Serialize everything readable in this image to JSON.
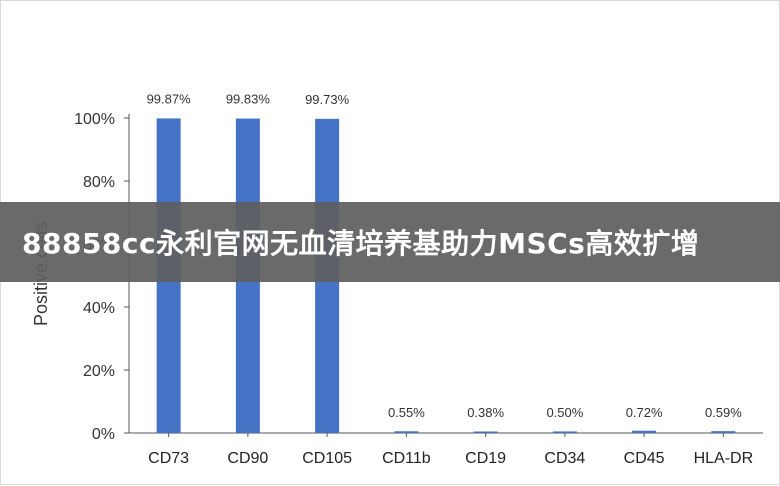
{
  "banner": {
    "text": "88858cc永利官网无血清培养基助力MSCs高效扩增"
  },
  "chart_data": {
    "type": "bar",
    "categories": [
      "CD73",
      "CD90",
      "CD105",
      "CD11b",
      "CD19",
      "CD34",
      "CD45",
      "HLA-DR"
    ],
    "values": [
      99.87,
      99.83,
      99.73,
      0.55,
      0.38,
      0.5,
      0.72,
      0.59
    ],
    "data_labels": [
      "99.87%",
      "99.83%",
      "99.73%",
      "0.55%",
      "0.38%",
      "0.50%",
      "0.72%",
      "0.59%"
    ],
    "ylabel": "Positive cells",
    "ylim": [
      0,
      100
    ],
    "yticks": [
      0,
      20,
      40,
      60,
      80,
      100
    ],
    "ytick_labels": [
      "0%",
      "20%",
      "40%",
      "60%",
      "80%",
      "100%"
    ],
    "bar_color": "#4472c4",
    "grid": false,
    "legend": "none"
  }
}
